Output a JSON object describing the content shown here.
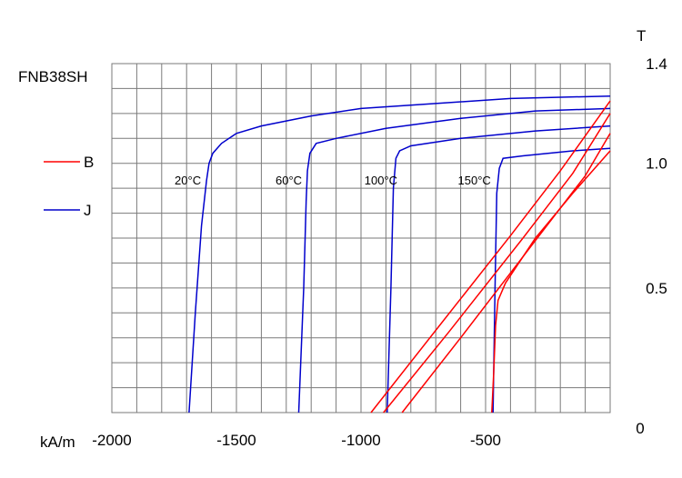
{
  "chart_data": {
    "type": "line",
    "title": "FNB38SH",
    "xlabel": "kA/m",
    "ylabel": "T",
    "xlim": [
      -2000,
      0
    ],
    "ylim": [
      0,
      1.4
    ],
    "x_ticks": [
      {
        "value": -2000,
        "label": "-2000"
      },
      {
        "value": -1500,
        "label": "-1500"
      },
      {
        "value": -1000,
        "label": "-1000"
      },
      {
        "value": -500,
        "label": "-500"
      },
      {
        "value": 0,
        "label": "0"
      }
    ],
    "y_ticks": [
      {
        "value": 1.4,
        "label": "1.4"
      },
      {
        "value": 1.0,
        "label": "1.0"
      },
      {
        "value": 0.5,
        "label": "0.5"
      }
    ],
    "grid": true,
    "x_grid_step": 100,
    "y_grid_step": 0.1,
    "legend": {
      "placement": "left",
      "entries": [
        {
          "name": "B",
          "color": "#ff0000"
        },
        {
          "name": "J",
          "color": "#0000cc"
        }
      ]
    },
    "colors": {
      "B": "#ff0000",
      "J": "#0000cc"
    },
    "series": [
      {
        "curve": "J",
        "label": "20°C",
        "label_at": [
          -1695,
          0.93
        ],
        "points": [
          [
            -1690,
            0
          ],
          [
            -1665,
            0.4
          ],
          [
            -1640,
            0.75
          ],
          [
            -1620,
            0.93
          ],
          [
            -1610,
            1.0
          ],
          [
            -1595,
            1.04
          ],
          [
            -1560,
            1.08
          ],
          [
            -1500,
            1.12
          ],
          [
            -1400,
            1.15
          ],
          [
            -1200,
            1.19
          ],
          [
            -1000,
            1.22
          ],
          [
            -700,
            1.24
          ],
          [
            -400,
            1.26
          ],
          [
            0,
            1.27
          ]
        ]
      },
      {
        "curve": "J",
        "label": "60°C",
        "label_at": [
          -1290,
          0.93
        ],
        "points": [
          [
            -1250,
            0
          ],
          [
            -1230,
            0.5
          ],
          [
            -1220,
            0.85
          ],
          [
            -1215,
            0.97
          ],
          [
            -1205,
            1.04
          ],
          [
            -1180,
            1.08
          ],
          [
            -1100,
            1.1
          ],
          [
            -900,
            1.14
          ],
          [
            -600,
            1.18
          ],
          [
            -300,
            1.21
          ],
          [
            0,
            1.22
          ]
        ]
      },
      {
        "curve": "J",
        "label": "100°C",
        "label_at": [
          -920,
          0.93
        ],
        "points": [
          [
            -895,
            0
          ],
          [
            -880,
            0.5
          ],
          [
            -870,
            0.9
          ],
          [
            -860,
            1.02
          ],
          [
            -845,
            1.05
          ],
          [
            -800,
            1.07
          ],
          [
            -600,
            1.1
          ],
          [
            -300,
            1.13
          ],
          [
            0,
            1.15
          ]
        ]
      },
      {
        "curve": "J",
        "label": "150°C",
        "label_at": [
          -545,
          0.93
        ],
        "points": [
          [
            -470,
            0
          ],
          [
            -462,
            0.5
          ],
          [
            -455,
            0.88
          ],
          [
            -445,
            0.98
          ],
          [
            -430,
            1.02
          ],
          [
            -350,
            1.03
          ],
          [
            -150,
            1.05
          ],
          [
            0,
            1.06
          ]
        ]
      },
      {
        "curve": "B",
        "label": "20°C",
        "points": [
          [
            -960,
            0
          ],
          [
            -700,
            0.33
          ],
          [
            -400,
            0.71
          ],
          [
            -200,
            0.97
          ],
          [
            0,
            1.25
          ]
        ]
      },
      {
        "curve": "B",
        "label": "60°C",
        "points": [
          [
            -910,
            0
          ],
          [
            -650,
            0.32
          ],
          [
            -350,
            0.7
          ],
          [
            -150,
            0.96
          ],
          [
            0,
            1.2
          ]
        ]
      },
      {
        "curve": "B",
        "label": "100°C",
        "points": [
          [
            -835,
            0
          ],
          [
            -600,
            0.3
          ],
          [
            -300,
            0.69
          ],
          [
            -100,
            0.95
          ],
          [
            0,
            1.12
          ]
        ]
      },
      {
        "curve": "B",
        "label": "150°C",
        "points": [
          [
            -475,
            0
          ],
          [
            -468,
            0.15
          ],
          [
            -460,
            0.35
          ],
          [
            -450,
            0.45
          ],
          [
            -420,
            0.52
          ],
          [
            -300,
            0.7
          ],
          [
            -150,
            0.88
          ],
          [
            0,
            1.05
          ]
        ]
      }
    ]
  }
}
